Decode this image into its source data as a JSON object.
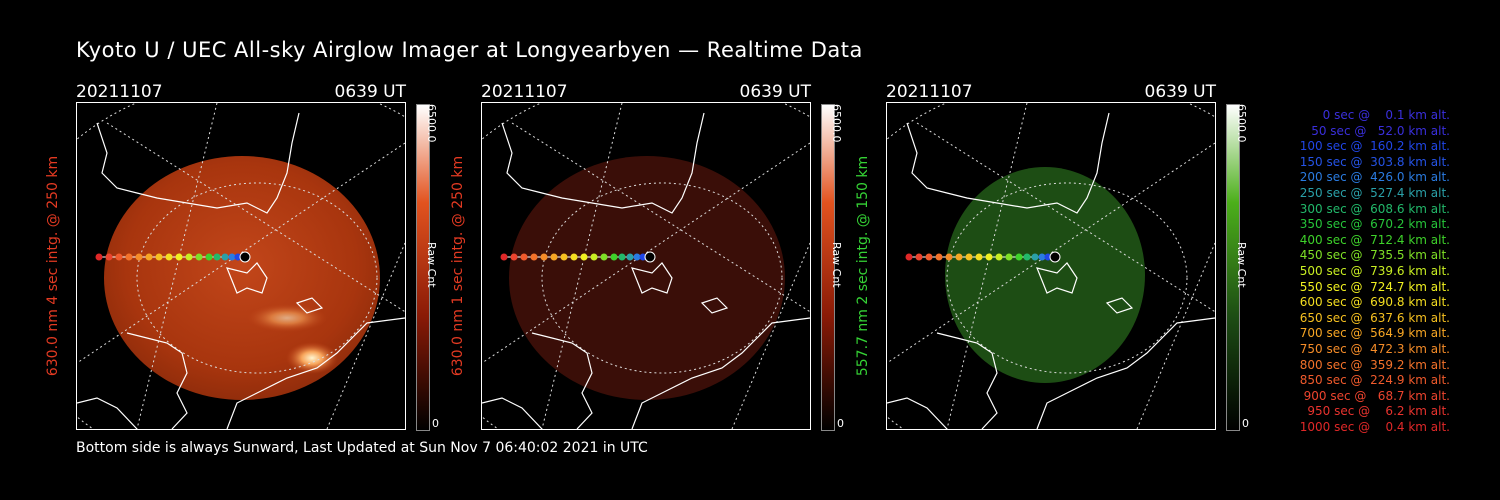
{
  "title": "Kyoto U / UEC All-sky Airglow Imager at Longyearbyen — Realtime Data",
  "footer": "Bottom side is always Sunward, Last Updated at Sun Nov  7 06:40:02 2021 in UTC",
  "panels": [
    {
      "date": "20211107",
      "time": "0639 UT",
      "ylabel": "630.0 nm 4 sec intg. @ 250 km",
      "ylabel_color": "#e33a22",
      "cbar_max": "6500.0",
      "cbar_min": "0",
      "cbar_unit": "Raw Cnt",
      "cbar_color": "#e2531f",
      "disk_color": "#b33a10"
    },
    {
      "date": "20211107",
      "time": "0639 UT",
      "ylabel": "630.0 nm 1 sec intg. @ 250 km",
      "ylabel_color": "#e33a22",
      "cbar_max": "6500.0",
      "cbar_min": "0",
      "cbar_unit": "Raw Cnt",
      "cbar_color": "#e2531f",
      "disk_color": "#3a0e08"
    },
    {
      "date": "20211107",
      "time": "0639 UT",
      "ylabel": "557.7 nm 2 sec intg. @ 150 km",
      "ylabel_color": "#35d235",
      "cbar_max": "6500.0",
      "cbar_min": "0",
      "cbar_unit": "Raw Cnt",
      "cbar_color": "#4caf1a",
      "disk_color": "#1d4d14"
    }
  ],
  "legend": [
    {
      "text": "   0 sec @    0.1 km alt.",
      "color": "#3a2fdc"
    },
    {
      "text": "  50 sec @   52.0 km alt.",
      "color": "#3a2fdc"
    },
    {
      "text": " 100 sec @  160.2 km alt.",
      "color": "#2046e6"
    },
    {
      "text": " 150 sec @  303.8 km alt.",
      "color": "#2553e6"
    },
    {
      "text": " 200 sec @  426.0 km alt.",
      "color": "#2a7be0"
    },
    {
      "text": " 250 sec @  527.4 km alt.",
      "color": "#2aa0a8"
    },
    {
      "text": " 300 sec @  608.6 km alt.",
      "color": "#22b86a"
    },
    {
      "text": " 350 sec @  670.2 km alt.",
      "color": "#26c43a"
    },
    {
      "text": " 400 sec @  712.4 km alt.",
      "color": "#3ed22a"
    },
    {
      "text": " 450 sec @  735.5 km alt.",
      "color": "#7fe026"
    },
    {
      "text": " 500 sec @  739.6 km alt.",
      "color": "#c8ee22"
    },
    {
      "text": " 550 sec @  724.7 km alt.",
      "color": "#f0f020"
    },
    {
      "text": " 600 sec @  690.8 km alt.",
      "color": "#f4de20"
    },
    {
      "text": " 650 sec @  637.6 km alt.",
      "color": "#f6c020"
    },
    {
      "text": " 700 sec @  564.9 km alt.",
      "color": "#f7a624"
    },
    {
      "text": " 750 sec @  472.3 km alt.",
      "color": "#f58c28"
    },
    {
      "text": " 800 sec @  359.2 km alt.",
      "color": "#f3722a"
    },
    {
      "text": " 850 sec @  224.9 km alt.",
      "color": "#f05a2c"
    },
    {
      "text": " 900 sec @   68.7 km alt.",
      "color": "#ec442e"
    },
    {
      "text": " 950 sec @    6.2 km alt.",
      "color": "#e8332e"
    },
    {
      "text": "1000 sec @    0.4 km alt.",
      "color": "#e02828"
    }
  ]
}
